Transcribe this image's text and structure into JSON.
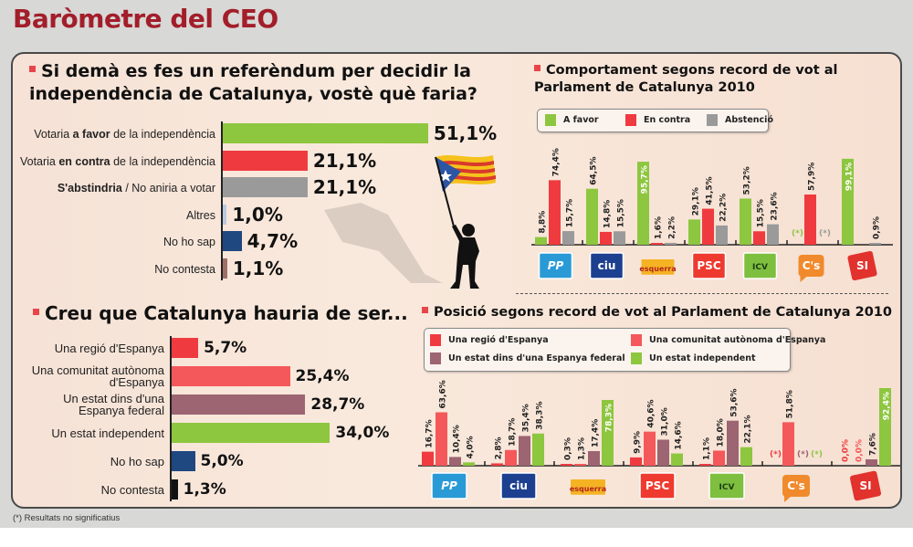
{
  "title": "Baròmetre del CEO",
  "footnote": "(*) Resultats no significatius",
  "colors": {
    "green": "#8dc63f",
    "red": "#ef3b3f",
    "gray": "#9a9a9a",
    "light_blue": "#b9c9e0",
    "navy": "#1f4780",
    "brown": "#a07068",
    "salmon": "#f5585a",
    "mauve": "#9d6472",
    "black": "#111111"
  },
  "q1": {
    "title_line1": "Si demà es fes un referèndum per decidir la",
    "title_line2": "independència de Catalunya, vostè què faria?",
    "items": [
      {
        "pre": "Votaria ",
        "bold": "a favor",
        "post": " de la independència",
        "value": 51.1,
        "value_label": "51,1%",
        "color": "#8dc63f"
      },
      {
        "pre": "Votaria ",
        "bold": "en contra",
        "post": " de la independència",
        "value": 21.1,
        "value_label": "21,1%",
        "color": "#ef3b3f"
      },
      {
        "pre": "",
        "bold": "S'abstindria",
        "post": " / No aniria a votar",
        "value": 21.1,
        "value_label": "21,1%",
        "color": "#9a9a9a"
      },
      {
        "pre": "Altres",
        "bold": "",
        "post": "",
        "value": 1.0,
        "value_label": "1,0%",
        "color": "#b9c9e0"
      },
      {
        "pre": "No ho sap",
        "bold": "",
        "post": "",
        "value": 4.7,
        "value_label": "4,7%",
        "color": "#1f4780"
      },
      {
        "pre": "No contesta",
        "bold": "",
        "post": "",
        "value": 1.1,
        "value_label": "1,1%",
        "color": "#a07068"
      }
    ]
  },
  "q2": {
    "title": "Creu que Catalunya hauria de ser...",
    "items": [
      {
        "line1": "Una regió d'Espanya",
        "line2": "",
        "value": 5.7,
        "value_label": "5,7%",
        "color": "#ef3b3f"
      },
      {
        "line1": "Una comunitat autònoma",
        "line2": "d'Espanya",
        "value": 25.4,
        "value_label": "25,4%",
        "color": "#f5585a"
      },
      {
        "line1": "Un estat dins d'una",
        "line2": "Espanya federal",
        "value": 28.7,
        "value_label": "28,7%",
        "color": "#9d6472"
      },
      {
        "line1": "Un estat independent",
        "line2": "",
        "value": 34.0,
        "value_label": "34,0%",
        "color": "#8dc63f"
      },
      {
        "line1": "No ho sap",
        "line2": "",
        "value": 5.0,
        "value_label": "5,0%",
        "color": "#1f4780"
      },
      {
        "line1": "No contesta",
        "line2": "",
        "value": 1.3,
        "value_label": "1,3%",
        "color": "#111111"
      }
    ]
  },
  "parties": [
    {
      "name": "PP",
      "logo_text": "PP",
      "logo_bg": "#2a9ad6",
      "logo_fg": "#ffffff"
    },
    {
      "name": "CiU",
      "logo_text": "ciu",
      "logo_bg": "#1d3f8f",
      "logo_fg": "#ffffff"
    },
    {
      "name": "Esquerra",
      "logo_text": "esquerra",
      "logo_bg": "#f5b324",
      "logo_fg": "#b2251e"
    },
    {
      "name": "PSC",
      "logo_text": "PSC",
      "logo_bg": "#ee3a2f",
      "logo_fg": "#ffffff"
    },
    {
      "name": "ICV-EUiA",
      "logo_text": "ICV",
      "logo_bg": "#7fbf3f",
      "logo_fg": "#1c3d14"
    },
    {
      "name": "C's",
      "logo_text": "C's",
      "logo_bg": "#f08a2c",
      "logo_fg": "#ffffff"
    },
    {
      "name": "SI",
      "logo_text": "SI",
      "logo_bg": "#e2322d",
      "logo_fg": "#ffffff"
    }
  ],
  "chart_data": [
    {
      "type": "bar",
      "orientation": "horizontal",
      "title": "Si demà es fes un referèndum per decidir la independència de Catalunya, vostè què faria?",
      "categories": [
        "Votaria a favor de la independència",
        "Votaria en contra de la independència",
        "S'abstindria / No aniria a votar",
        "Altres",
        "No ho sap",
        "No contesta"
      ],
      "values": [
        51.1,
        21.1,
        21.1,
        1.0,
        4.7,
        1.1
      ],
      "unit": "%",
      "xlim": [
        0,
        55
      ]
    },
    {
      "type": "bar",
      "orientation": "vertical",
      "title": "Comportament segons record de vot al Parlament de Catalunya 2010",
      "categories": [
        "PP",
        "CiU",
        "Esquerra",
        "PSC",
        "ICV-EUiA",
        "C's",
        "SI"
      ],
      "series": [
        {
          "name": "A favor",
          "color": "#8dc63f",
          "values": [
            8.8,
            64.5,
            95.7,
            29.1,
            53.2,
            null,
            99.1
          ],
          "labels": [
            "8,8%",
            "64,5%",
            "95,7%",
            "29,1%",
            "53,2%",
            "(*)",
            "99,1%"
          ]
        },
        {
          "name": "En contra",
          "color": "#ef3b3f",
          "values": [
            74.4,
            14.8,
            1.6,
            41.5,
            15.5,
            57.9,
            null
          ],
          "labels": [
            "74,4%",
            "14,8%",
            "1,6%",
            "41,5%",
            "15,5%",
            "57,9%",
            ""
          ]
        },
        {
          "name": "Abstenció",
          "color": "#9a9a9a",
          "values": [
            15.7,
            15.5,
            2.2,
            22.2,
            23.6,
            null,
            0.9
          ],
          "labels": [
            "15,7%",
            "15,5%",
            "2,2%",
            "22,2%",
            "23,6%",
            "(*)",
            "0,9%"
          ]
        }
      ],
      "unit": "%",
      "ylim": [
        0,
        100
      ],
      "legend": "top"
    },
    {
      "type": "bar",
      "orientation": "vertical",
      "title": "Posició segons record de vot al Parlament de Catalunya 2010",
      "categories": [
        "PP",
        "CiU",
        "Esquerra",
        "PSC",
        "ICV-EUiA",
        "C's",
        "SI"
      ],
      "series": [
        {
          "name": "Una regió d'Espanya",
          "color": "#ef3b3f",
          "values": [
            16.7,
            2.8,
            0.3,
            9.9,
            1.1,
            null,
            0.0
          ],
          "labels": [
            "16,7%",
            "2,8%",
            "0,3%",
            "9,9%",
            "1,1%",
            "(*)",
            "0,0%"
          ]
        },
        {
          "name": "Una comunitat autònoma d'Espanya",
          "color": "#f5585a",
          "values": [
            63.6,
            18.7,
            1.3,
            40.6,
            18.0,
            51.8,
            0.0
          ],
          "labels": [
            "63,6%",
            "18,7%",
            "1,3%",
            "40,6%",
            "18,0%",
            "51,8%",
            "0,0%"
          ]
        },
        {
          "name": "Un estat dins d'una Espanya federal",
          "color": "#9d6472",
          "values": [
            10.4,
            35.4,
            17.4,
            31.0,
            53.6,
            null,
            7.6
          ],
          "labels": [
            "10,4%",
            "35,4%",
            "17,4%",
            "31,0%",
            "53,6%",
            "(*)",
            "7,6%"
          ]
        },
        {
          "name": "Un estat independent",
          "color": "#8dc63f",
          "values": [
            4.0,
            38.3,
            78.3,
            14.6,
            22.1,
            null,
            92.4
          ],
          "labels": [
            "4,0%",
            "38,3%",
            "78,3%",
            "14,6%",
            "22,1%",
            "(*)",
            "92,4%"
          ]
        }
      ],
      "unit": "%",
      "ylim": [
        0,
        100
      ],
      "legend": "top"
    },
    {
      "type": "bar",
      "orientation": "horizontal",
      "title": "Creu que Catalunya hauria de ser...",
      "categories": [
        "Una regió d'Espanya",
        "Una comunitat autònoma d'Espanya",
        "Un estat dins d'una Espanya federal",
        "Un estat independent",
        "No ho sap",
        "No contesta"
      ],
      "values": [
        5.7,
        25.4,
        28.7,
        34.0,
        5.0,
        1.3
      ],
      "unit": "%",
      "xlim": [
        0,
        40
      ]
    }
  ]
}
